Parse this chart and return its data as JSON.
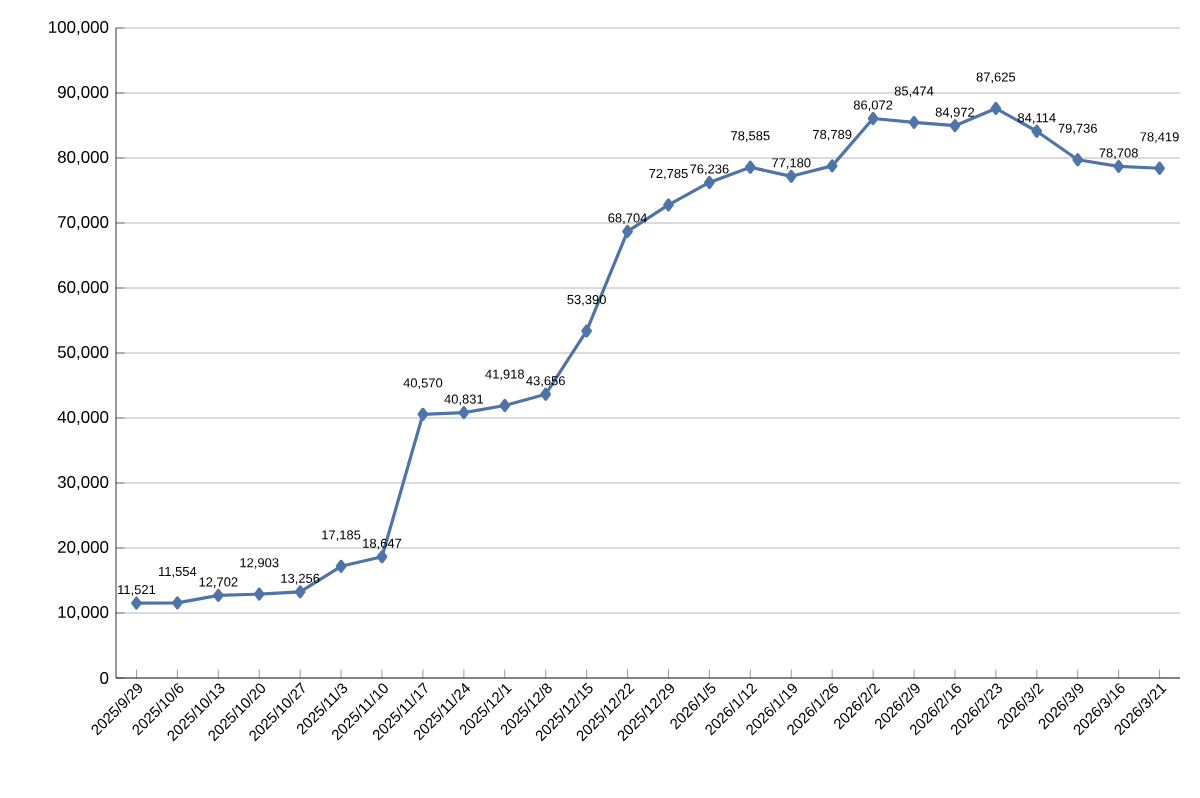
{
  "chart_data": {
    "type": "line",
    "categories": [
      "2025/9/29",
      "2025/10/6",
      "2025/10/13",
      "2025/10/20",
      "2025/10/27",
      "2025/11/3",
      "2025/11/10",
      "2025/11/17",
      "2025/11/24",
      "2025/12/1",
      "2025/12/8",
      "2025/12/15",
      "2025/12/22",
      "2025/12/29",
      "2026/1/5",
      "2026/1/12",
      "2026/1/19",
      "2026/1/26",
      "2026/2/2",
      "2026/2/9",
      "2026/2/16",
      "2026/2/23",
      "2026/3/2",
      "2026/3/9",
      "2026/3/16",
      "2026/3/21"
    ],
    "values": [
      11521,
      11554,
      12702,
      12903,
      13256,
      17185,
      18647,
      40570,
      40831,
      41918,
      43656,
      53390,
      68704,
      72785,
      76236,
      78585,
      77180,
      78789,
      86072,
      85474,
      84972,
      87625,
      84114,
      79736,
      78708,
      78419
    ],
    "value_labels": [
      "11,521",
      "11,554",
      "12,702",
      "12,903",
      "13,256",
      "17,185",
      "18,647",
      "40,570",
      "40,831",
      "41,918",
      "43,656",
      "53,390",
      "68,704",
      "72,785",
      "76,236",
      "78,585",
      "77,180",
      "78,789",
      "86,072",
      "85,474",
      "84,972",
      "87,625",
      "84,114",
      "79,736",
      "78,708",
      "78,419"
    ],
    "color": "#4f74a8",
    "marker": "diamond",
    "line_style": "solid",
    "grid": "y",
    "ylim": [
      0,
      100000
    ],
    "yticks": [
      0,
      {
        "value": 10000,
        "label": "10,000"
      },
      {
        "value": 20000,
        "label": "20,000"
      },
      {
        "value": 30000,
        "label": "30,000"
      },
      {
        "value": 40000,
        "label": "40,000"
      },
      {
        "value": 50000,
        "label": "50,000"
      },
      {
        "value": 60000,
        "label": "60,000"
      },
      {
        "value": 70000,
        "label": "70,000"
      },
      {
        "value": 80000,
        "label": "80,000"
      },
      {
        "value": 90000,
        "label": "90,000"
      },
      {
        "value": 100000,
        "label": "100,000"
      }
    ]
  }
}
